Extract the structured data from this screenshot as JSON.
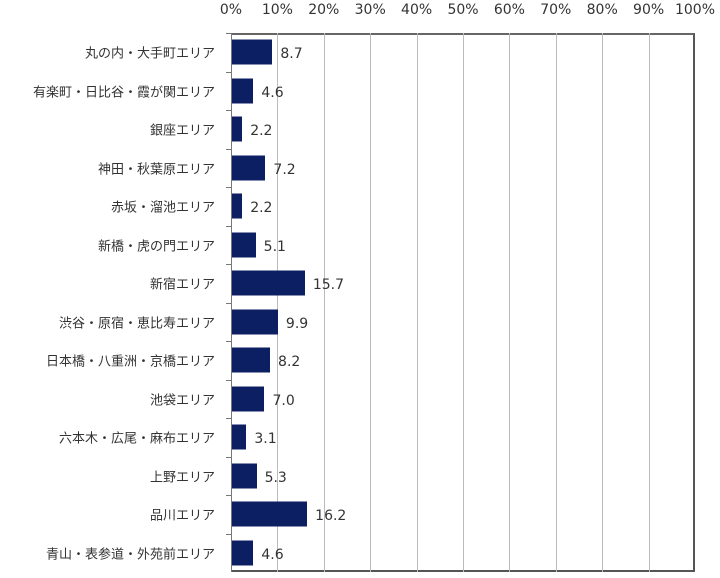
{
  "chart_data": {
    "type": "bar",
    "orientation": "horizontal",
    "title": "",
    "xlabel": "",
    "ylabel": "",
    "xlim": [
      0,
      100
    ],
    "x_ticks": [
      "0%",
      "10%",
      "20%",
      "30%",
      "40%",
      "50%",
      "60%",
      "70%",
      "80%",
      "90%",
      "100%"
    ],
    "x_axis_position": "top",
    "grid": true,
    "legend": null,
    "bar_color": "#0c1f63",
    "categories": [
      "丸の内・大手町エリア",
      "有楽町・日比谷・霞が関エリア",
      "銀座エリア",
      "神田・秋葉原エリア",
      "赤坂・溜池エリア",
      "新橋・虎の門エリア",
      "新宿エリア",
      "渋谷・原宿・恵比寿エリア",
      "日本橋・八重洲・京橋エリア",
      "池袋エリア",
      "六本木・広尾・麻布エリア",
      "上野エリア",
      "品川エリア",
      "青山・表参道・外苑前エリア"
    ],
    "values": [
      8.7,
      4.6,
      2.2,
      7.2,
      2.2,
      5.1,
      15.7,
      9.9,
      8.2,
      7.0,
      3.1,
      5.3,
      16.2,
      4.6
    ],
    "value_labels": [
      "8.7",
      "4.6",
      "2.2",
      "7.2",
      "2.2",
      "5.1",
      "15.7",
      "9.9",
      "8.2",
      "7.0",
      "3.1",
      "5.3",
      "16.2",
      "4.6"
    ]
  }
}
